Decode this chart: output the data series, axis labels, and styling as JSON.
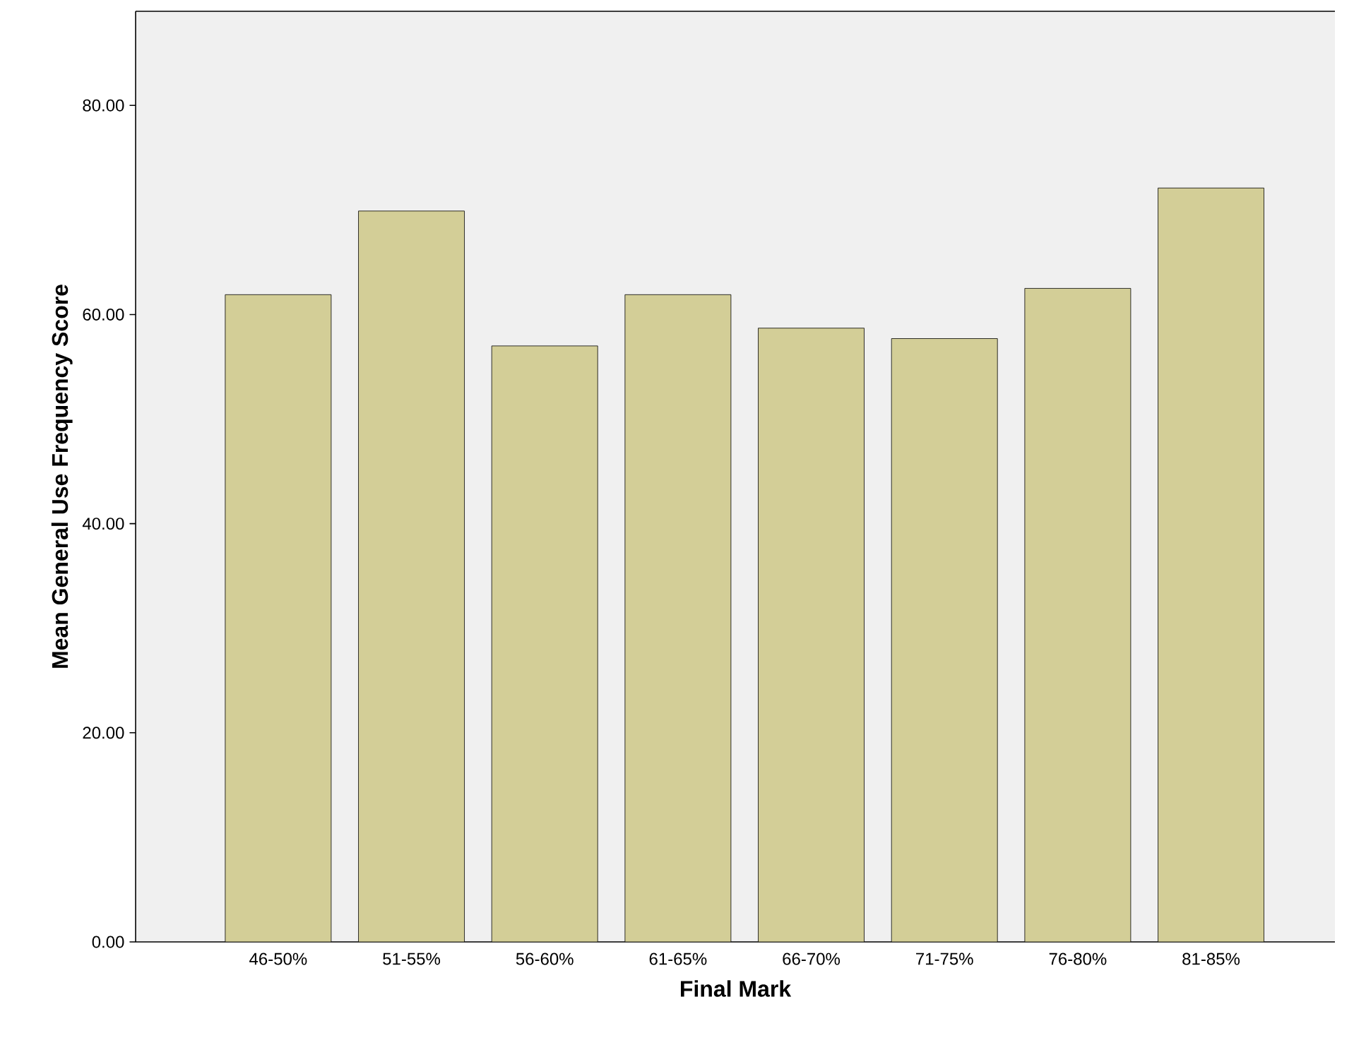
{
  "chart_data": {
    "type": "bar",
    "xlabel": "Final Mark",
    "ylabel": "Mean General Use Frequency Score",
    "categories": [
      "46-50%",
      "51-55%",
      "56-60%",
      "61-65%",
      "66-70%",
      "71-75%",
      "76-80%",
      "81-85%"
    ],
    "values": [
      61.9,
      69.9,
      57.0,
      61.9,
      58.7,
      57.7,
      62.5,
      72.1
    ],
    "color": "#d3ce97",
    "ylim": [
      0,
      89
    ],
    "yticks": [
      {
        "value": 0,
        "label": "0.00"
      },
      {
        "value": 20,
        "label": "20.00"
      },
      {
        "value": 40,
        "label": "40.00"
      },
      {
        "value": 60,
        "label": "60.00"
      },
      {
        "value": 80,
        "label": "80.00"
      }
    ],
    "grid": false
  }
}
